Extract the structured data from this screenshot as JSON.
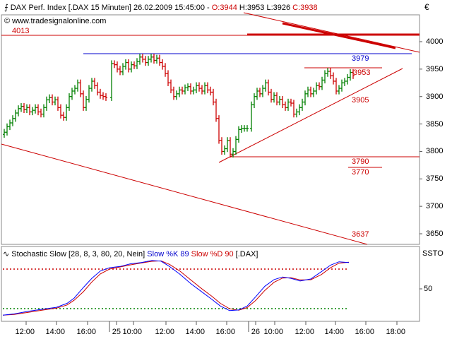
{
  "header": {
    "symbol_line": "DAX Perf. Index [.DAX  15 Minuten] 26.02.2009 15:45:00 - ",
    "open": "O:3944",
    "high": "H:3953",
    "low": "L:3926",
    "close": "C:3938",
    "website": "www.tradesignalonline.com",
    "currency": "€"
  },
  "price_chart": {
    "y_ticks": [
      "4000",
      "3950",
      "3900",
      "3850",
      "3800",
      "3750",
      "3700",
      "3650"
    ],
    "level_labels": {
      "l4013": "4013",
      "l3979": "3979",
      "l3953": "3953",
      "l3905": "3905",
      "l3790": "3790",
      "l3770": "3770",
      "l3637": "3637"
    },
    "colors": {
      "up": "#008000",
      "down": "#cc0000",
      "trend": "#cc0000",
      "resistance": "#0000cc"
    }
  },
  "stoch_chart": {
    "title_prefix": "Stochastic Slow [28, 8, 3, 80, 20, Nein]",
    "k_label": "Slow %K 89",
    "d_label": "Slow %D 90",
    "symbol": "[.DAX]",
    "y_tick": "50",
    "right_label": "SSTO",
    "colors": {
      "k": "#0000ff",
      "d": "#cc0000",
      "overbought": "#cc0000",
      "oversold": "#008000"
    }
  },
  "x_axis": {
    "ticks": [
      "12:00",
      "14:00",
      "16:00",
      "25",
      "10:00",
      "12:00",
      "14:00",
      "16:00",
      "26",
      "10:00",
      "12:00",
      "14:00",
      "16:00",
      "18:00"
    ]
  }
}
